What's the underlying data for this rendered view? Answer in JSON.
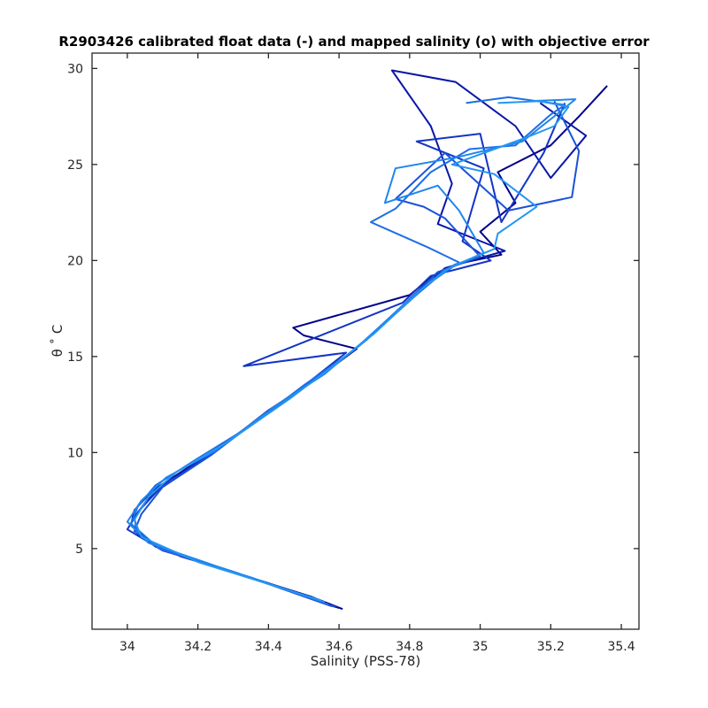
{
  "chart_data": {
    "type": "line",
    "title": "R2903426 calibrated float data (-) and mapped salinity (o) with objective error",
    "xlabel": "Salinity (PSS-78)",
    "ylabel": "θ ˚ C",
    "xlim": [
      33.9,
      35.45
    ],
    "ylim": [
      0.8,
      30.8
    ],
    "xticks": [
      "34",
      "34.2",
      "34.4",
      "34.6",
      "34.8",
      "35",
      "35.2",
      "35.4"
    ],
    "yticks": [
      "5",
      "10",
      "15",
      "20",
      "25",
      "30"
    ],
    "grid": false,
    "legend": "none",
    "colors": [
      "#00008b",
      "#0a16a8",
      "#1434c4",
      "#1a52d8",
      "#1e6ee6",
      "#1f86ee",
      "#2496f2"
    ],
    "series": [
      {
        "values": [
          [
            34.61,
            1.85
          ],
          [
            34.52,
            2.5
          ],
          [
            34.26,
            4.0
          ],
          [
            34.08,
            5.1
          ],
          [
            34.01,
            6.2
          ],
          [
            34.02,
            7.0
          ],
          [
            34.07,
            8.0
          ],
          [
            34.17,
            9.2
          ],
          [
            34.3,
            10.8
          ],
          [
            34.43,
            12.5
          ],
          [
            34.57,
            14.3
          ],
          [
            34.65,
            15.4
          ],
          [
            34.5,
            16.1
          ],
          [
            34.47,
            16.5
          ],
          [
            34.8,
            18.2
          ],
          [
            34.86,
            19.1
          ],
          [
            34.93,
            19.8
          ],
          [
            35.06,
            20.3
          ],
          [
            35.0,
            21.5
          ],
          [
            35.1,
            23.0
          ],
          [
            35.05,
            24.6
          ],
          [
            35.2,
            26.0
          ],
          [
            35.28,
            27.5
          ],
          [
            35.36,
            29.1
          ]
        ]
      },
      {
        "values": [
          [
            34.6,
            1.9
          ],
          [
            34.4,
            3.2
          ],
          [
            34.15,
            4.6
          ],
          [
            34.03,
            5.7
          ],
          [
            34.02,
            6.6
          ],
          [
            34.05,
            7.4
          ],
          [
            34.12,
            8.6
          ],
          [
            34.26,
            10.2
          ],
          [
            34.4,
            12.2
          ],
          [
            34.55,
            14.0
          ],
          [
            34.68,
            15.9
          ],
          [
            34.83,
            18.4
          ],
          [
            34.9,
            19.6
          ],
          [
            35.07,
            20.5
          ],
          [
            34.88,
            21.9
          ],
          [
            34.92,
            24.0
          ],
          [
            34.86,
            27.0
          ],
          [
            34.75,
            29.9
          ],
          [
            34.93,
            29.3
          ],
          [
            35.1,
            27.0
          ],
          [
            35.2,
            24.3
          ],
          [
            35.3,
            26.5
          ],
          [
            35.17,
            28.2
          ]
        ]
      },
      {
        "values": [
          [
            34.58,
            2.0
          ],
          [
            34.3,
            3.8
          ],
          [
            34.1,
            4.9
          ],
          [
            34.0,
            6.0
          ],
          [
            34.03,
            6.9
          ],
          [
            34.09,
            8.1
          ],
          [
            34.21,
            9.6
          ],
          [
            34.36,
            11.6
          ],
          [
            34.51,
            13.6
          ],
          [
            34.62,
            15.2
          ],
          [
            34.33,
            14.5
          ],
          [
            34.78,
            17.8
          ],
          [
            34.86,
            19.2
          ],
          [
            35.03,
            20.0
          ],
          [
            34.95,
            21.0
          ],
          [
            35.01,
            24.8
          ],
          [
            34.82,
            26.2
          ],
          [
            35.0,
            26.6
          ],
          [
            35.06,
            22.0
          ],
          [
            35.18,
            25.6
          ],
          [
            35.24,
            28.2
          ]
        ]
      },
      {
        "values": [
          [
            34.59,
            1.95
          ],
          [
            34.35,
            3.5
          ],
          [
            34.12,
            4.8
          ],
          [
            34.02,
            5.9
          ],
          [
            34.04,
            6.8
          ],
          [
            34.1,
            8.2
          ],
          [
            34.24,
            9.9
          ],
          [
            34.39,
            12.0
          ],
          [
            34.54,
            13.9
          ],
          [
            34.66,
            15.6
          ],
          [
            34.8,
            18.0
          ],
          [
            34.88,
            19.4
          ],
          [
            35.0,
            20.2
          ],
          [
            34.9,
            22.2
          ],
          [
            34.84,
            22.8
          ],
          [
            34.76,
            23.2
          ],
          [
            34.9,
            25.6
          ],
          [
            35.08,
            22.6
          ],
          [
            35.26,
            23.3
          ],
          [
            35.28,
            25.7
          ],
          [
            35.21,
            28.3
          ]
        ]
      },
      {
        "values": [
          [
            34.57,
            2.1
          ],
          [
            34.28,
            3.9
          ],
          [
            34.09,
            5.0
          ],
          [
            34.01,
            6.3
          ],
          [
            34.03,
            7.2
          ],
          [
            34.08,
            8.3
          ],
          [
            34.2,
            9.7
          ],
          [
            34.35,
            11.4
          ],
          [
            34.5,
            13.5
          ],
          [
            34.64,
            15.3
          ],
          [
            34.78,
            17.6
          ],
          [
            34.87,
            19.0
          ],
          [
            34.94,
            19.9
          ],
          [
            34.85,
            20.7
          ],
          [
            34.69,
            22.0
          ],
          [
            34.76,
            22.7
          ],
          [
            34.86,
            24.6
          ],
          [
            34.97,
            25.8
          ],
          [
            35.1,
            26.0
          ],
          [
            35.2,
            27.6
          ],
          [
            35.24,
            28.1
          ],
          [
            35.08,
            28.5
          ],
          [
            34.96,
            28.2
          ]
        ]
      },
      {
        "values": [
          [
            34.56,
            2.2
          ],
          [
            34.25,
            4.1
          ],
          [
            34.06,
            5.3
          ],
          [
            34.0,
            6.4
          ],
          [
            34.04,
            7.5
          ],
          [
            34.11,
            8.7
          ],
          [
            34.25,
            10.1
          ],
          [
            34.41,
            12.3
          ],
          [
            34.56,
            14.1
          ],
          [
            34.67,
            15.8
          ],
          [
            34.82,
            18.3
          ],
          [
            34.9,
            19.5
          ],
          [
            35.01,
            20.4
          ],
          [
            34.94,
            22.6
          ],
          [
            34.88,
            23.9
          ],
          [
            34.73,
            23.0
          ],
          [
            34.76,
            24.8
          ],
          [
            34.94,
            25.4
          ],
          [
            35.12,
            26.2
          ],
          [
            35.23,
            27.8
          ],
          [
            35.27,
            28.4
          ],
          [
            35.14,
            28.3
          ]
        ]
      },
      {
        "values": [
          [
            34.55,
            2.3
          ],
          [
            34.2,
            4.3
          ],
          [
            34.04,
            5.6
          ],
          [
            34.02,
            6.5
          ],
          [
            34.06,
            7.7
          ],
          [
            34.14,
            9.0
          ],
          [
            34.28,
            10.5
          ],
          [
            34.46,
            12.8
          ],
          [
            34.59,
            14.6
          ],
          [
            34.7,
            16.2
          ],
          [
            34.84,
            18.6
          ],
          [
            34.92,
            19.7
          ],
          [
            35.04,
            20.6
          ],
          [
            35.05,
            21.4
          ],
          [
            35.16,
            22.8
          ],
          [
            35.04,
            24.5
          ],
          [
            34.92,
            25.0
          ],
          [
            35.13,
            26.4
          ],
          [
            35.21,
            27.0
          ],
          [
            35.25,
            28.0
          ],
          [
            35.17,
            28.3
          ],
          [
            35.05,
            28.2
          ]
        ]
      }
    ]
  }
}
